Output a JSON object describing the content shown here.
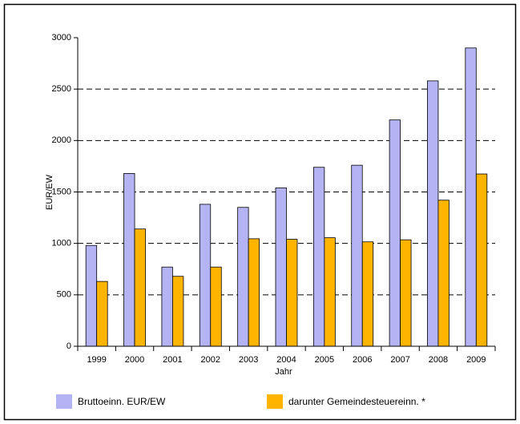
{
  "chart_data": {
    "type": "bar",
    "categories": [
      "1999",
      "2000",
      "2001",
      "2002",
      "2003",
      "2004",
      "2005",
      "2006",
      "2007",
      "2008",
      "2009"
    ],
    "series": [
      {
        "name": "Bruttoeinn. EUR/EW",
        "color": "#b4b4f5",
        "values": [
          980,
          1680,
          770,
          1380,
          1350,
          1540,
          1740,
          1760,
          2200,
          2580,
          2900
        ]
      },
      {
        "name": "darunter Gemeindesteuereinn. *",
        "color": "#ffb400",
        "values": [
          630,
          1140,
          680,
          770,
          1045,
          1040,
          1055,
          1015,
          1035,
          1420,
          1675
        ]
      }
    ],
    "x_label": "Jahr",
    "y_label": "EUR/EW",
    "ylim": [
      0,
      3000
    ],
    "yticks": [
      0,
      500,
      1000,
      1500,
      2000,
      2500,
      3000
    ],
    "grid": true,
    "legend": "bottom"
  }
}
